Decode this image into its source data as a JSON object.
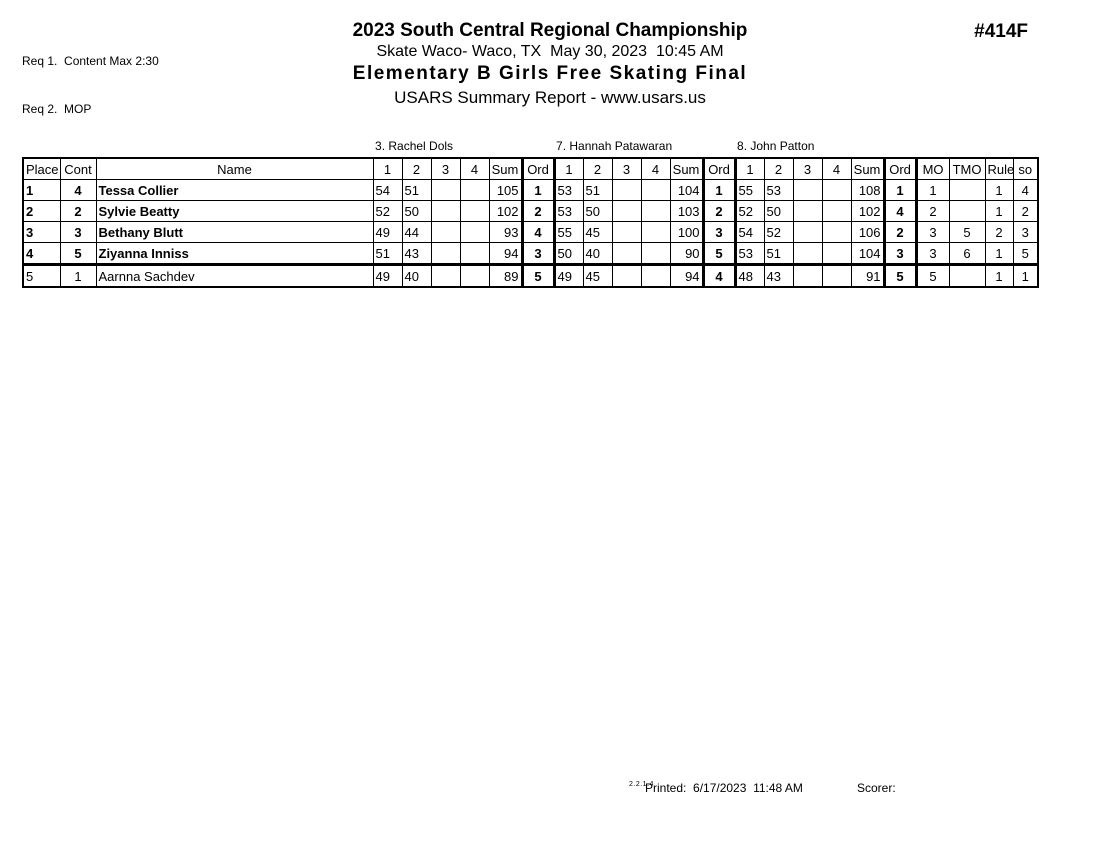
{
  "page": {
    "req_line_1": "Req 1.  Content Max 2:30",
    "req_line_2": "Req 2.  MOP",
    "event_number": "#414F",
    "title": "2023 South Central Regional Championship",
    "venue_line": "Skate Waco- Waco, TX  May 30, 2023  10:45 AM",
    "event_title": "Elementary B Girls Free Skating Final",
    "report_line": "USARS Summary Report - www.usars.us"
  },
  "table": {
    "judge_headers": [
      "3.  Rachel Dols",
      "7.  Hannah Patawaran",
      "8.  John Patton"
    ],
    "columns": {
      "place": "Place",
      "cont": "Cont",
      "name": "Name",
      "scores": [
        "1",
        "2",
        "3",
        "4"
      ],
      "sum": "Sum",
      "ord": "Ord",
      "mo": "MO",
      "tmo": "TMO",
      "rule": "Rule",
      "so": "so"
    },
    "rows": [
      {
        "place": "1",
        "cont": "4",
        "name": "Tessa Collier",
        "bold": true,
        "judges": [
          [
            "54",
            "51",
            "",
            "",
            "105",
            "1"
          ],
          [
            "53",
            "51",
            "",
            "",
            "104",
            "1"
          ],
          [
            "55",
            "53",
            "",
            "",
            "108",
            "1"
          ]
        ],
        "mo": "1",
        "tmo": "",
        "rule": "1",
        "so": "4"
      },
      {
        "place": "2",
        "cont": "2",
        "name": "Sylvie Beatty",
        "bold": true,
        "judges": [
          [
            "52",
            "50",
            "",
            "",
            "102",
            "2"
          ],
          [
            "53",
            "50",
            "",
            "",
            "103",
            "2"
          ],
          [
            "52",
            "50",
            "",
            "",
            "102",
            "4"
          ]
        ],
        "mo": "2",
        "tmo": "",
        "rule": "1",
        "so": "2"
      },
      {
        "place": "3",
        "cont": "3",
        "name": "Bethany Blutt",
        "bold": true,
        "judges": [
          [
            "49",
            "44",
            "",
            "",
            "93",
            "4"
          ],
          [
            "55",
            "45",
            "",
            "",
            "100",
            "3"
          ],
          [
            "54",
            "52",
            "",
            "",
            "106",
            "2"
          ]
        ],
        "mo": "3",
        "tmo": "5",
        "rule": "2",
        "so": "3"
      },
      {
        "place": "4",
        "cont": "5",
        "name": "Ziyanna Inniss",
        "bold": true,
        "judges": [
          [
            "51",
            "43",
            "",
            "",
            "94",
            "3"
          ],
          [
            "50",
            "40",
            "",
            "",
            "90",
            "5"
          ],
          [
            "53",
            "51",
            "",
            "",
            "104",
            "3"
          ]
        ],
        "mo": "3",
        "tmo": "6",
        "rule": "1",
        "so": "5"
      },
      {
        "place": "5",
        "cont": "1",
        "name": "Aarnna Sachdev",
        "bold": false,
        "judges": [
          [
            "49",
            "40",
            "",
            "",
            "89",
            "5"
          ],
          [
            "49",
            "45",
            "",
            "",
            "94",
            "4"
          ],
          [
            "48",
            "43",
            "",
            "",
            "91",
            "5"
          ]
        ],
        "mo": "5",
        "tmo": "",
        "rule": "1",
        "so": "1"
      }
    ]
  },
  "footer": {
    "version": "2.2.1.4",
    "printed_label": "Printed:  6/17/2023  11:48 AM",
    "scorer_label": "Scorer:"
  }
}
